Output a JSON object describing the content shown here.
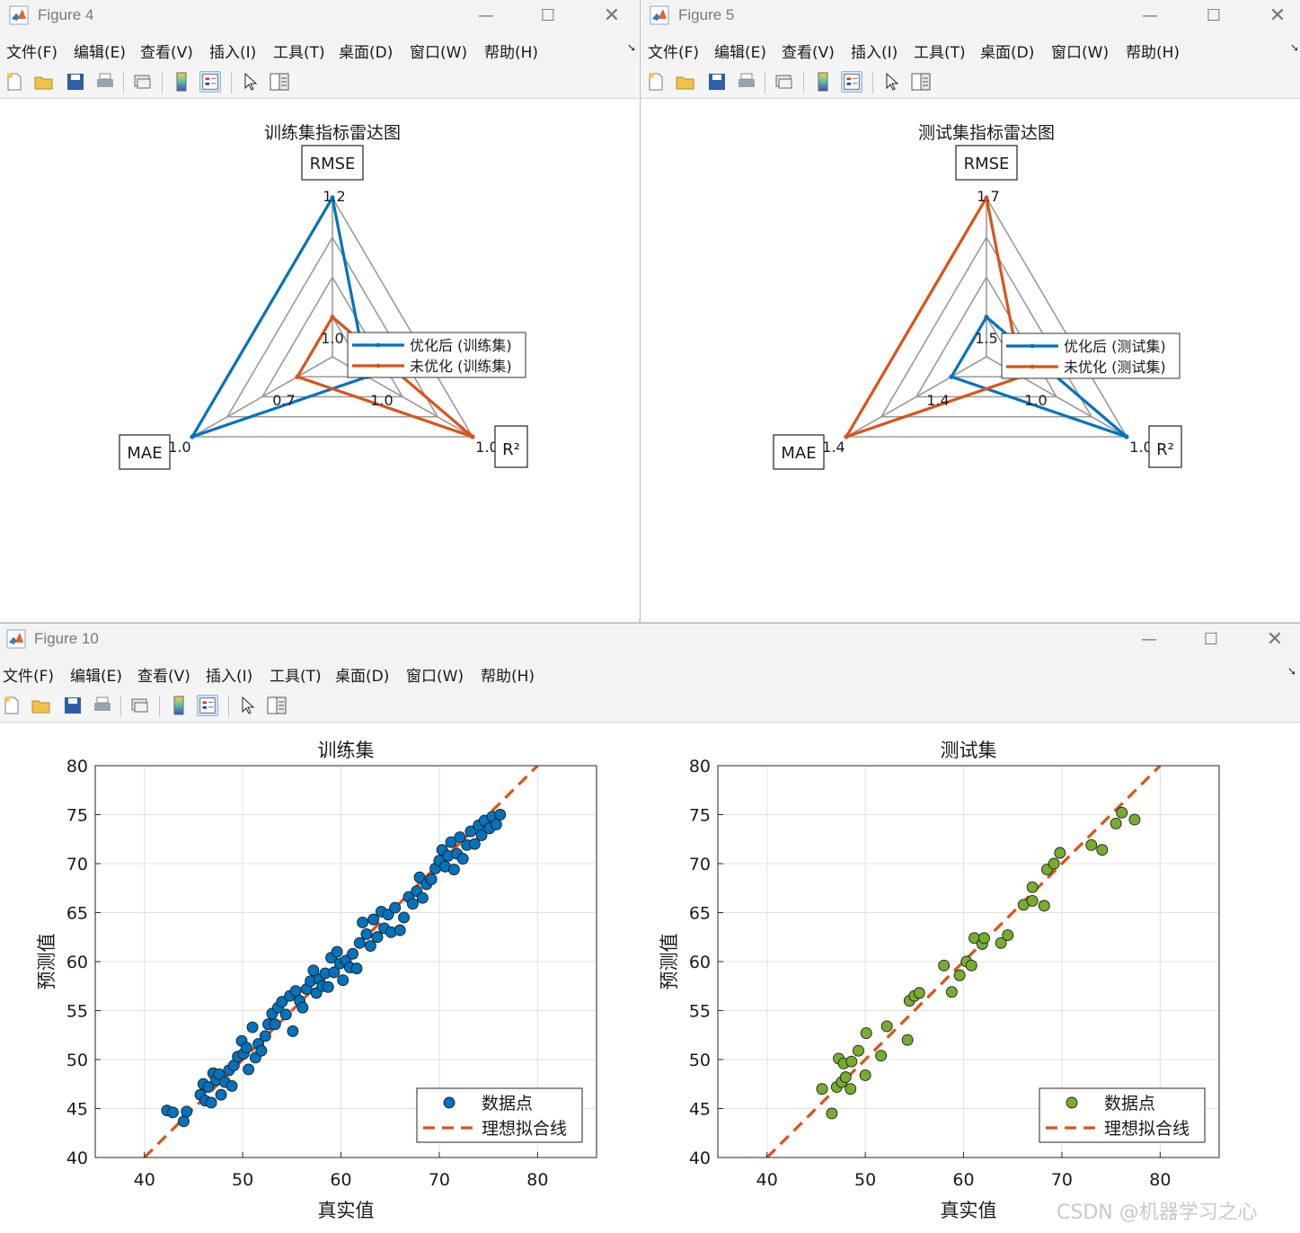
{
  "menu_labels": [
    "文件(F)",
    "编辑(E)",
    "查看(V)",
    "插入(I)",
    "工具(T)",
    "桌面(D)",
    "窗口(W)",
    "帮助(H)"
  ],
  "toolbar_icons": [
    "new-figure-icon",
    "open-icon",
    "save-icon",
    "print-icon",
    "link-icon",
    "colorbar-icon",
    "legend-icon",
    "pointer-icon",
    "property-editor-icon"
  ],
  "colors": {
    "blue": "#0072BD",
    "orange": "#D95319",
    "green": "#77AC30",
    "grid": "#9a9a9a"
  },
  "windows": {
    "figure4": {
      "title": "Figure 4"
    },
    "figure5": {
      "title": "Figure 5"
    },
    "figure10": {
      "title": "Figure 10"
    }
  },
  "watermark": "CSDN @机器学习之心",
  "chart_data": [
    {
      "type": "radar",
      "title": "训练集指标雷达图",
      "axes": [
        "RMSE",
        "R²",
        "MAE"
      ],
      "axis_tick_labels": {
        "RMSE": [
          "1.0",
          "1.2"
        ],
        "R²": [
          "1.0",
          "1.0"
        ],
        "MAE": [
          "0.7",
          "1.0"
        ]
      },
      "grid_rings": 4,
      "series": [
        {
          "name": "优化后 (训练集)",
          "color": "#0072BD",
          "values_fraction": [
            1.0,
            0.25,
            1.0
          ]
        },
        {
          "name": "未优化 (训练集)",
          "color": "#D95319",
          "values_fraction": [
            0.25,
            1.0,
            0.25
          ]
        }
      ],
      "legend": "right-center"
    },
    {
      "type": "radar",
      "title": "测试集指标雷达图",
      "axes": [
        "RMSE",
        "R²",
        "MAE"
      ],
      "axis_tick_labels": {
        "RMSE": [
          "1.5",
          "1.7"
        ],
        "R²": [
          "1.0",
          "1.0"
        ],
        "MAE": [
          "1.4",
          "1.4"
        ]
      },
      "grid_rings": 4,
      "series": [
        {
          "name": "优化后 (测试集)",
          "color": "#0072BD",
          "values_fraction": [
            0.25,
            1.0,
            0.25
          ]
        },
        {
          "name": "未优化 (测试集)",
          "color": "#D95319",
          "values_fraction": [
            1.0,
            0.25,
            1.0
          ]
        }
      ],
      "legend": "right-center"
    },
    {
      "type": "scatter",
      "title": "训练集",
      "xlabel": "真实值",
      "ylabel": "预测值",
      "xlim": [
        35,
        86
      ],
      "ylim": [
        40,
        80
      ],
      "xticks": [
        40,
        50,
        60,
        70,
        80
      ],
      "yticks": [
        40,
        45,
        50,
        55,
        60,
        65,
        70,
        75,
        80
      ],
      "grid": true,
      "legend": "bottom-right",
      "legend_entries": [
        "数据点",
        "理想拟合线"
      ],
      "point_color": "#0072BD",
      "line_color": "#D95319",
      "ideal_line": [
        [
          40,
          40
        ],
        [
          80,
          80
        ]
      ],
      "points": [
        [
          42.3,
          44.8
        ],
        [
          42.9,
          44.6
        ],
        [
          44.0,
          43.7
        ],
        [
          44.3,
          44.7
        ],
        [
          45.7,
          46.4
        ],
        [
          46.0,
          47.5
        ],
        [
          46.2,
          45.8
        ],
        [
          46.5,
          47.2
        ],
        [
          46.8,
          45.6
        ],
        [
          47.0,
          48.6
        ],
        [
          47.3,
          47.9
        ],
        [
          47.6,
          48.5
        ],
        [
          47.8,
          46.4
        ],
        [
          48.2,
          47.7
        ],
        [
          48.6,
          48.9
        ],
        [
          48.9,
          47.3
        ],
        [
          49.1,
          49.4
        ],
        [
          49.5,
          50.3
        ],
        [
          49.9,
          51.9
        ],
        [
          50.1,
          50.6
        ],
        [
          50.4,
          51.2
        ],
        [
          50.6,
          49.0
        ],
        [
          51.0,
          53.3
        ],
        [
          51.3,
          50.2
        ],
        [
          51.6,
          51.6
        ],
        [
          51.9,
          50.9
        ],
        [
          52.3,
          52.4
        ],
        [
          52.6,
          53.6
        ],
        [
          53.0,
          54.7
        ],
        [
          53.3,
          53.6
        ],
        [
          53.6,
          55.3
        ],
        [
          54.0,
          55.9
        ],
        [
          54.4,
          54.6
        ],
        [
          54.8,
          56.5
        ],
        [
          55.1,
          52.9
        ],
        [
          55.4,
          57.0
        ],
        [
          55.8,
          56.0
        ],
        [
          56.1,
          55.3
        ],
        [
          56.5,
          57.2
        ],
        [
          56.9,
          58.0
        ],
        [
          57.2,
          59.1
        ],
        [
          57.5,
          56.8
        ],
        [
          57.8,
          58.2
        ],
        [
          58.1,
          57.5
        ],
        [
          58.4,
          58.8
        ],
        [
          58.7,
          57.4
        ],
        [
          59.0,
          60.4
        ],
        [
          59.3,
          58.9
        ],
        [
          59.6,
          61.0
        ],
        [
          59.9,
          59.8
        ],
        [
          60.2,
          58.1
        ],
        [
          60.5,
          60.1
        ],
        [
          60.9,
          59.4
        ],
        [
          61.2,
          60.8
        ],
        [
          61.6,
          59.3
        ],
        [
          61.9,
          61.9
        ],
        [
          62.2,
          64.0
        ],
        [
          62.6,
          62.8
        ],
        [
          63.0,
          61.6
        ],
        [
          63.3,
          64.3
        ],
        [
          63.7,
          62.5
        ],
        [
          64.1,
          65.1
        ],
        [
          64.4,
          63.4
        ],
        [
          64.8,
          64.8
        ],
        [
          65.1,
          63.0
        ],
        [
          65.5,
          65.5
        ],
        [
          66.0,
          63.2
        ],
        [
          66.4,
          64.5
        ],
        [
          66.9,
          66.6
        ],
        [
          67.3,
          65.9
        ],
        [
          67.7,
          67.2
        ],
        [
          68.0,
          68.6
        ],
        [
          68.3,
          66.5
        ],
        [
          68.7,
          67.9
        ],
        [
          69.2,
          68.4
        ],
        [
          69.6,
          69.5
        ],
        [
          70.0,
          70.3
        ],
        [
          70.3,
          71.4
        ],
        [
          70.6,
          69.7
        ],
        [
          70.9,
          70.8
        ],
        [
          71.2,
          72.2
        ],
        [
          71.5,
          69.4
        ],
        [
          71.8,
          71.0
        ],
        [
          72.1,
          72.7
        ],
        [
          72.4,
          70.5
        ],
        [
          72.8,
          71.9
        ],
        [
          73.2,
          73.3
        ],
        [
          73.6,
          72.0
        ],
        [
          74.0,
          73.9
        ],
        [
          74.3,
          72.9
        ],
        [
          74.6,
          74.4
        ],
        [
          75.1,
          73.6
        ],
        [
          75.4,
          74.8
        ],
        [
          75.8,
          74.0
        ],
        [
          76.2,
          75.0
        ]
      ]
    },
    {
      "type": "scatter",
      "title": "测试集",
      "xlabel": "真实值",
      "ylabel": "预测值",
      "xlim": [
        35,
        86
      ],
      "ylim": [
        40,
        80
      ],
      "xticks": [
        40,
        50,
        60,
        70,
        80
      ],
      "yticks": [
        40,
        45,
        50,
        55,
        60,
        65,
        70,
        75,
        80
      ],
      "grid": true,
      "legend": "bottom-right",
      "legend_entries": [
        "数据点",
        "理想拟合线"
      ],
      "point_color": "#77AC30",
      "line_color": "#D95319",
      "ideal_line": [
        [
          40,
          40
        ],
        [
          80,
          80
        ]
      ],
      "points": [
        [
          45.6,
          47.0
        ],
        [
          46.6,
          44.5
        ],
        [
          47.1,
          47.2
        ],
        [
          47.3,
          50.1
        ],
        [
          47.6,
          47.7
        ],
        [
          47.8,
          49.6
        ],
        [
          48.0,
          48.2
        ],
        [
          48.5,
          47.0
        ],
        [
          48.6,
          49.8
        ],
        [
          49.3,
          50.9
        ],
        [
          50.0,
          48.4
        ],
        [
          50.1,
          52.7
        ],
        [
          51.6,
          50.4
        ],
        [
          52.2,
          53.4
        ],
        [
          54.3,
          52.0
        ],
        [
          54.5,
          56.0
        ],
        [
          55.0,
          56.5
        ],
        [
          55.5,
          56.8
        ],
        [
          58.0,
          59.6
        ],
        [
          58.8,
          56.9
        ],
        [
          59.6,
          58.6
        ],
        [
          60.3,
          60.0
        ],
        [
          60.8,
          59.6
        ],
        [
          61.1,
          62.4
        ],
        [
          61.9,
          61.8
        ],
        [
          62.1,
          62.4
        ],
        [
          63.8,
          61.9
        ],
        [
          64.5,
          62.7
        ],
        [
          66.1,
          65.8
        ],
        [
          67.0,
          67.6
        ],
        [
          67.0,
          66.2
        ],
        [
          68.2,
          65.7
        ],
        [
          68.5,
          69.4
        ],
        [
          69.2,
          70.0
        ],
        [
          69.8,
          71.1
        ],
        [
          73.0,
          71.9
        ],
        [
          74.1,
          71.4
        ],
        [
          75.5,
          74.1
        ],
        [
          76.1,
          75.2
        ],
        [
          77.4,
          74.5
        ]
      ]
    }
  ]
}
